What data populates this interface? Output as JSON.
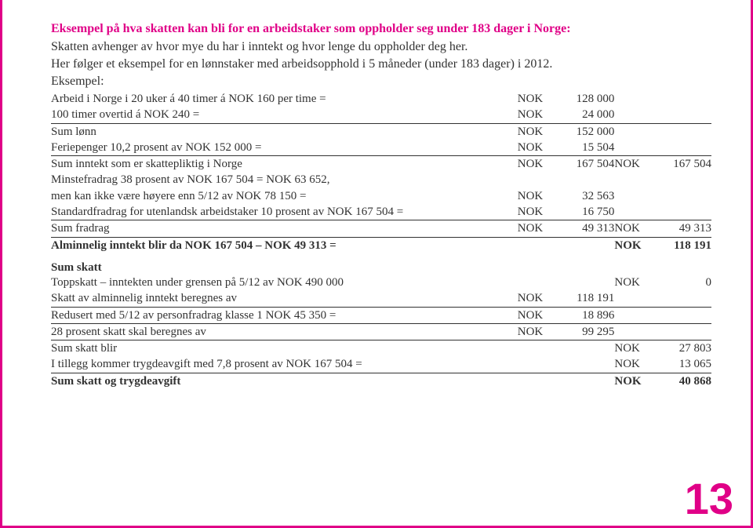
{
  "title": "Eksempel på hva skatten kan bli for en arbeidstaker som oppholder seg under 183 dager i Norge:",
  "intro1": "Skatten avhenger av hvor mye du har i inntekt og hvor lenge du oppholder deg her.",
  "intro2": "Her følger et eksempel for en lønnstaker med arbeidsopphold i 5 måneder (under 183 dager) i 2012.",
  "intro3": "Eksempel:",
  "currency": "NOK",
  "rows_top": [
    {
      "label": "Arbeid i Norge i 20 uker á 40 timer á NOK 160 per time =",
      "amt": "128 000"
    },
    {
      "label": "100 timer overtid á NOK 240 =",
      "amt": "24 000"
    },
    {
      "label": "Sum lønn",
      "amt": "152 000",
      "rule": true
    },
    {
      "label": "Feriepenger 10,2 prosent av NOK 152 000 =",
      "amt": "15 504"
    },
    {
      "label": "Sum inntekt som er skattepliktig i Norge",
      "amt": "167 504",
      "amt2": "167 504",
      "rule": true
    },
    {
      "label": "Minstefradrag 38 prosent av NOK 167 504 = NOK 63 652,"
    },
    {
      "label": "men kan ikke være høyere enn 5/12 av NOK 78 150 =",
      "amt": "32 563"
    },
    {
      "label": "Standardfradrag for utenlandsk arbeidstaker 10 prosent av NOK 167 504 =",
      "amt": "16 750"
    },
    {
      "label": "Sum fradrag",
      "amt": "49 313",
      "amt2": "49 313",
      "rule": true
    },
    {
      "label": "Alminnelig inntekt blir da NOK 167 504 – NOK 49 313 =",
      "amt2": "118 191",
      "rule": true,
      "bold": true
    }
  ],
  "sum_skatt_heading": "Sum skatt",
  "rows_bottom": [
    {
      "label": "Toppskatt – inntekten under grensen på 5/12 av NOK 490 000",
      "amt2": "0",
      "cur2": true
    },
    {
      "label": "Skatt av alminnelig inntekt beregnes av",
      "amt": "118 191"
    },
    {
      "label": "Redusert med 5/12 av personfradrag klasse 1 NOK 45 350 =",
      "amt": "18 896",
      "rule": true
    },
    {
      "label": "28 prosent skatt skal beregnes av",
      "amt": "99 295",
      "rule": true
    },
    {
      "label": "Sum skatt blir",
      "amt2": "27 803",
      "cur2": true,
      "rule": true
    },
    {
      "label": "I tillegg kommer trygdeavgift med 7,8 prosent av NOK 167 504 =",
      "amt2": "13 065",
      "cur2": true
    },
    {
      "label": "Sum skatt og trygdeavgift",
      "amt2": "40 868",
      "cur2": true,
      "bold": true,
      "rule": true
    }
  ],
  "page_number": "13"
}
